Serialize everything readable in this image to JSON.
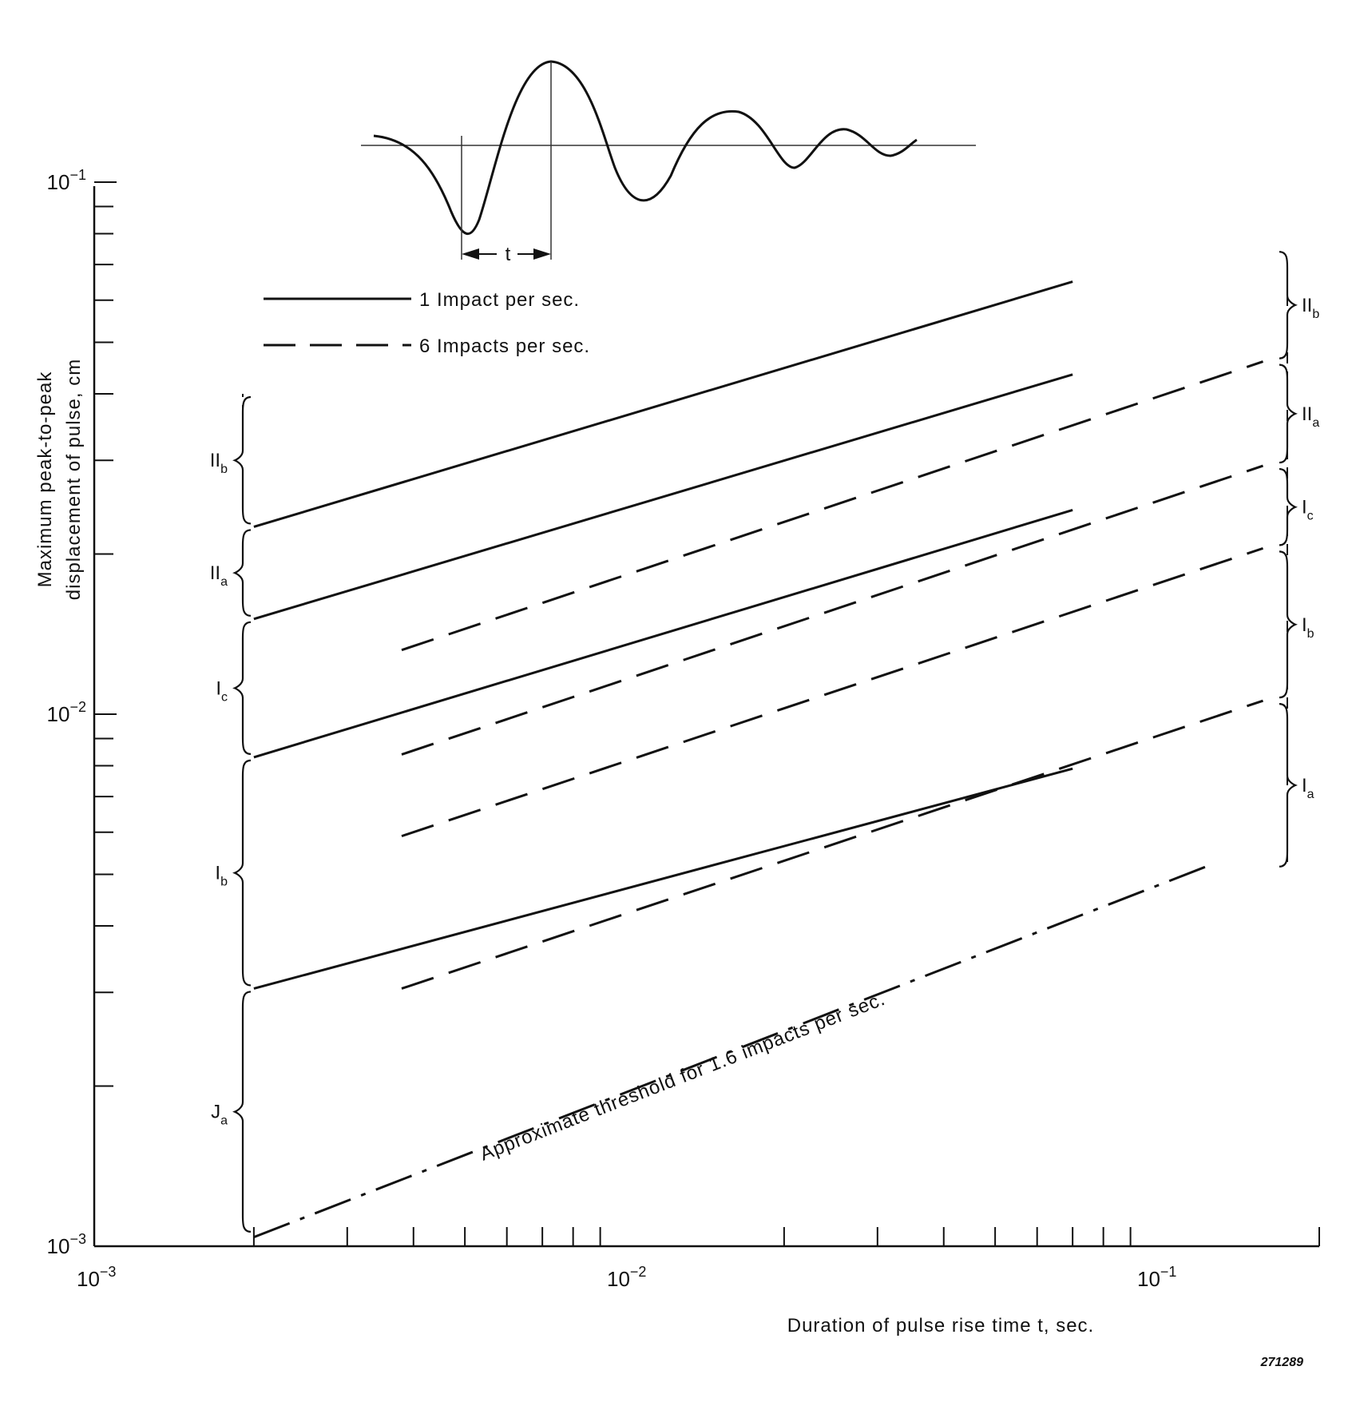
{
  "chart_data": {
    "type": "line",
    "title": "",
    "xlabel": "Duration of pulse rise time t, sec.",
    "ylabel": "Maximum peak-to-peak displacement of pulse, cm",
    "x_scale": "log",
    "y_scale": "log",
    "xlim": [
      0.001,
      0.17
    ],
    "ylim": [
      0.001,
      0.1
    ],
    "x_ticks": [
      {
        "base": "10",
        "exp": "−3",
        "value": 0.001
      },
      {
        "base": "10",
        "exp": "−2",
        "value": 0.01
      },
      {
        "base": "10",
        "exp": "−1",
        "value": 0.1
      }
    ],
    "y_ticks": [
      {
        "base": "10",
        "exp": "−3",
        "value": 0.001
      },
      {
        "base": "10",
        "exp": "−2",
        "value": 0.01
      },
      {
        "base": "10",
        "exp": "−1",
        "value": 0.1
      }
    ],
    "grid": false,
    "legend": {
      "position": "top-left",
      "entries": [
        {
          "label": "1 Impact per sec.",
          "style": "solid"
        },
        {
          "label": "6 Impacts per sec.",
          "style": "dashed"
        }
      ]
    },
    "series": [
      {
        "name": "1 Impact per sec.",
        "style": "solid",
        "x": [
          0.002,
          0.07
        ],
        "y": [
          0.0225,
          0.065
        ]
      },
      {
        "name": "1 Impact per sec.",
        "style": "solid",
        "x": [
          0.002,
          0.07
        ],
        "y": [
          0.0151,
          0.0435
        ]
      },
      {
        "name": "1 Impact per sec.",
        "style": "solid",
        "x": [
          0.002,
          0.07
        ],
        "y": [
          0.0083,
          0.0242
        ]
      },
      {
        "name": "1 Impact per sec.",
        "style": "solid",
        "x": [
          0.002,
          0.07
        ],
        "y": [
          0.00305,
          0.0079
        ]
      },
      {
        "name": "6 Impacts per sec.",
        "style": "dashed",
        "x": [
          0.0038,
          0.16
        ],
        "y": [
          0.0132,
          0.046
        ]
      },
      {
        "name": "6 Impacts per sec.",
        "style": "dashed",
        "x": [
          0.0038,
          0.16
        ],
        "y": [
          0.0084,
          0.0293
        ]
      },
      {
        "name": "6 Impacts per sec.",
        "style": "dashed",
        "x": [
          0.0038,
          0.16
        ],
        "y": [
          0.0059,
          0.0205
        ]
      },
      {
        "name": "6 Impacts per sec.",
        "style": "dashed",
        "x": [
          0.0038,
          0.16
        ],
        "y": [
          0.00305,
          0.0106
        ]
      },
      {
        "name": "Approximate threshold for 1.6 impacts per sec.",
        "style": "dashdot",
        "x": [
          0.002,
          0.13
        ],
        "y": [
          0.00104,
          0.00525
        ]
      }
    ],
    "annotations": [
      {
        "text": "Approximate threshold for 1.6 impacts per sec.",
        "target": "threshold-line"
      }
    ],
    "left_bands": [
      {
        "base": "II",
        "sub": "b",
        "y": [
          0.0225,
          0.04
        ]
      },
      {
        "base": "II",
        "sub": "a",
        "y": [
          0.0151,
          0.0225
        ]
      },
      {
        "base": "I",
        "sub": "c",
        "y": [
          0.0083,
          0.0151
        ]
      },
      {
        "base": "I",
        "sub": "b",
        "y": [
          0.00305,
          0.0083
        ]
      },
      {
        "base": "J",
        "sub": "a",
        "y": [
          0.00105,
          0.00305
        ]
      }
    ],
    "right_bands": [
      {
        "base": "II",
        "sub": "b",
        "y": [
          0.046,
          0.075
        ]
      },
      {
        "base": "II",
        "sub": "a",
        "y": [
          0.0293,
          0.046
        ]
      },
      {
        "base": "I",
        "sub": "c",
        "y": [
          0.0205,
          0.0293
        ]
      },
      {
        "base": "I",
        "sub": "b",
        "y": [
          0.0106,
          0.0205
        ]
      },
      {
        "base": "I",
        "sub": "a",
        "y": [
          0.0051,
          0.0106
        ]
      }
    ],
    "inset": {
      "description_label": "t",
      "waveform": "damped oscillation pulse"
    },
    "figure_number": "271289"
  }
}
